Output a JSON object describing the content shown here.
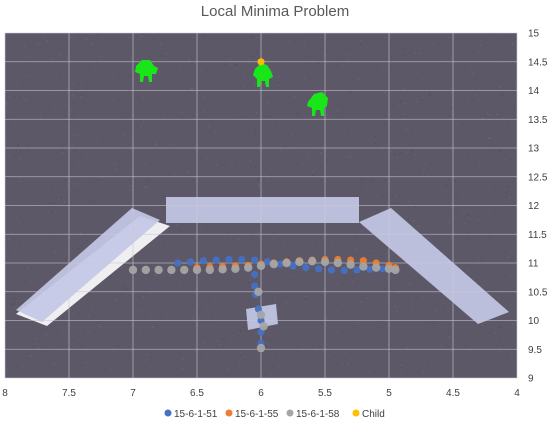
{
  "chart_data": {
    "type": "scatter",
    "title": "Local Minima Problem",
    "x_reversed": true,
    "xlim": [
      8,
      4
    ],
    "ylim": [
      9,
      15
    ],
    "xticks": [
      "8",
      "7.5",
      "7",
      "6.5",
      "6",
      "5.5",
      "5",
      "4.5",
      "4"
    ],
    "yticks": [
      "9",
      "9.5",
      "10",
      "10.5",
      "11",
      "11.5",
      "12",
      "12.5",
      "13",
      "13.5",
      "14",
      "14.5",
      "15"
    ],
    "grid": true,
    "legend_position": "bottom",
    "series": [
      {
        "name": "15-6-1-51",
        "color": "#4472C4",
        "points": [
          [
            6.65,
            11.0
          ],
          [
            6.55,
            11.02
          ],
          [
            6.45,
            11.04
          ],
          [
            6.35,
            11.05
          ],
          [
            6.25,
            11.06
          ],
          [
            6.15,
            11.06
          ],
          [
            6.05,
            11.05
          ],
          [
            5.95,
            11.02
          ],
          [
            5.85,
            10.98
          ],
          [
            5.75,
            10.95
          ],
          [
            5.65,
            10.92
          ],
          [
            5.55,
            10.9
          ],
          [
            5.45,
            10.88
          ],
          [
            5.35,
            10.87
          ],
          [
            5.25,
            10.88
          ],
          [
            5.15,
            10.89
          ],
          [
            5.05,
            10.9
          ],
          [
            6.05,
            10.8
          ],
          [
            6.05,
            10.6
          ],
          [
            6.04,
            10.45
          ],
          [
            6.02,
            10.2
          ],
          [
            6.0,
            10.0
          ],
          [
            6.0,
            9.8
          ],
          [
            6.0,
            9.6
          ]
        ]
      },
      {
        "name": "15-6-1-55",
        "color": "#ED7D31",
        "points": [
          [
            6.5,
            10.92
          ],
          [
            6.4,
            10.93
          ],
          [
            6.3,
            10.94
          ],
          [
            6.2,
            10.95
          ],
          [
            6.1,
            10.96
          ],
          [
            6.0,
            10.98
          ],
          [
            5.9,
            11.0
          ],
          [
            5.8,
            11.02
          ],
          [
            5.7,
            11.04
          ],
          [
            5.6,
            11.05
          ],
          [
            5.5,
            11.06
          ],
          [
            5.4,
            11.06
          ],
          [
            5.3,
            11.05
          ],
          [
            5.2,
            11.04
          ],
          [
            5.1,
            11.0
          ],
          [
            5.0,
            10.96
          ],
          [
            4.95,
            10.92
          ]
        ]
      },
      {
        "name": "15-6-1-58",
        "color": "#A5A5A5",
        "points": [
          [
            7.0,
            10.88
          ],
          [
            6.9,
            10.88
          ],
          [
            6.8,
            10.88
          ],
          [
            6.7,
            10.88
          ],
          [
            6.6,
            10.88
          ],
          [
            6.5,
            10.88
          ],
          [
            6.4,
            10.88
          ],
          [
            6.3,
            10.89
          ],
          [
            6.2,
            10.9
          ],
          [
            6.1,
            10.92
          ],
          [
            6.0,
            10.95
          ],
          [
            5.9,
            10.98
          ],
          [
            5.8,
            11.0
          ],
          [
            5.7,
            11.02
          ],
          [
            5.6,
            11.03
          ],
          [
            5.5,
            11.02
          ],
          [
            5.4,
            11.0
          ],
          [
            5.3,
            10.97
          ],
          [
            5.2,
            10.94
          ],
          [
            5.1,
            10.92
          ],
          [
            5.0,
            10.9
          ],
          [
            4.95,
            10.88
          ],
          [
            6.02,
            10.5
          ],
          [
            6.0,
            10.1
          ],
          [
            5.98,
            9.9
          ],
          [
            6.0,
            9.52
          ]
        ]
      },
      {
        "name": "Child",
        "color": "#FFC000",
        "points": [
          [
            6.0,
            14.5
          ]
        ]
      }
    ]
  },
  "plot_style": {
    "plot_background": "#5d5868",
    "gridline_color": "#c9c9d6",
    "obstacle_color": "#c3c8e6",
    "figure_color": "#19e619"
  }
}
